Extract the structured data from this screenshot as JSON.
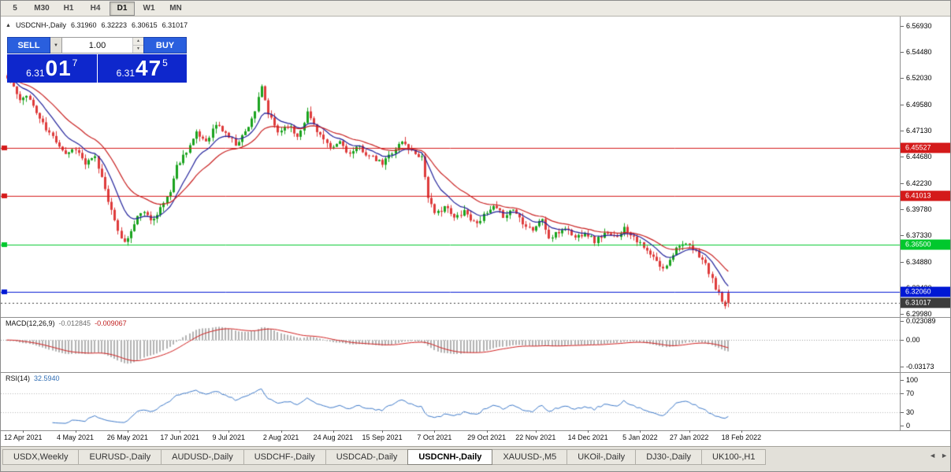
{
  "toolbar": {
    "timeframes": [
      {
        "label": "5",
        "active": false
      },
      {
        "label": "M30",
        "active": false
      },
      {
        "label": "H1",
        "active": false
      },
      {
        "label": "H4",
        "active": false
      },
      {
        "label": "D1",
        "active": true
      },
      {
        "label": "W1",
        "active": false
      },
      {
        "label": "MN",
        "active": false
      }
    ]
  },
  "chart_header": {
    "collapse_icon": "▲",
    "symbol": "USDCNH-,Daily",
    "open": "6.31960",
    "high": "6.32223",
    "low": "6.30615",
    "close": "6.31017"
  },
  "trade_panel": {
    "sell_label": "SELL",
    "buy_label": "BUY",
    "volume_value": "1.00",
    "dropdown_icon": "▼",
    "spin_up_icon": "▲",
    "spin_down_icon": "▼",
    "sell_price": {
      "small": "6.31",
      "big": "01",
      "sup": "7"
    },
    "buy_price": {
      "small": "6.31",
      "big": "47",
      "sup": "5"
    }
  },
  "chart_data": {
    "type": "candlestick",
    "symbol": "USDCNH-,Daily",
    "timeframe": "Daily",
    "last_ohlc": {
      "open": 6.3196,
      "high": 6.32223,
      "low": 6.30615,
      "close": 6.31017
    },
    "n_bars": 222,
    "noise_seed": 11,
    "close_jitter": 0.0026,
    "wick_amp": 0.0048,
    "price_waypoints": [
      [
        0,
        6.52
      ],
      [
        2,
        6.512
      ],
      [
        4,
        6.498
      ],
      [
        6,
        6.506
      ],
      [
        9,
        6.488
      ],
      [
        12,
        6.472
      ],
      [
        15,
        6.462
      ],
      [
        18,
        6.45
      ],
      [
        21,
        6.455
      ],
      [
        24,
        6.44
      ],
      [
        27,
        6.446
      ],
      [
        30,
        6.418
      ],
      [
        33,
        6.385
      ],
      [
        36,
        6.366
      ],
      [
        38,
        6.377
      ],
      [
        41,
        6.396
      ],
      [
        44,
        6.388
      ],
      [
        47,
        6.398
      ],
      [
        50,
        6.415
      ],
      [
        52,
        6.438
      ],
      [
        55,
        6.453
      ],
      [
        58,
        6.468
      ],
      [
        61,
        6.462
      ],
      [
        64,
        6.477
      ],
      [
        67,
        6.469
      ],
      [
        70,
        6.459
      ],
      [
        73,
        6.47
      ],
      [
        76,
        6.49
      ],
      [
        78,
        6.511
      ],
      [
        80,
        6.487
      ],
      [
        83,
        6.47
      ],
      [
        86,
        6.477
      ],
      [
        89,
        6.466
      ],
      [
        92,
        6.488
      ],
      [
        95,
        6.472
      ],
      [
        99,
        6.453
      ],
      [
        102,
        6.461
      ],
      [
        105,
        6.449
      ],
      [
        108,
        6.456
      ],
      [
        111,
        6.447
      ],
      [
        115,
        6.44
      ],
      [
        118,
        6.452
      ],
      [
        121,
        6.461
      ],
      [
        124,
        6.452
      ],
      [
        127,
        6.447
      ],
      [
        129,
        6.41
      ],
      [
        131,
        6.392
      ],
      [
        134,
        6.401
      ],
      [
        137,
        6.389
      ],
      [
        140,
        6.397
      ],
      [
        143,
        6.385
      ],
      [
        146,
        6.391
      ],
      [
        149,
        6.399
      ],
      [
        152,
        6.392
      ],
      [
        155,
        6.398
      ],
      [
        158,
        6.386
      ],
      [
        161,
        6.379
      ],
      [
        164,
        6.389
      ],
      [
        166,
        6.37
      ],
      [
        168,
        6.374
      ],
      [
        171,
        6.381
      ],
      [
        174,
        6.371
      ],
      [
        177,
        6.377
      ],
      [
        180,
        6.368
      ],
      [
        183,
        6.375
      ],
      [
        186,
        6.371
      ],
      [
        189,
        6.38
      ],
      [
        192,
        6.373
      ],
      [
        195,
        6.361
      ],
      [
        198,
        6.352
      ],
      [
        201,
        6.341
      ],
      [
        203,
        6.352
      ],
      [
        206,
        6.366
      ],
      [
        209,
        6.362
      ],
      [
        212,
        6.355
      ],
      [
        214,
        6.346
      ],
      [
        216,
        6.331
      ],
      [
        218,
        6.318
      ],
      [
        220,
        6.305
      ],
      [
        221,
        6.31
      ]
    ],
    "y_axis": {
      "min": 6.297,
      "max": 6.578,
      "tick_labels": [
        "6.56930",
        "6.54480",
        "6.52030",
        "6.49580",
        "6.47130",
        "6.44680",
        "6.42230",
        "6.39780",
        "6.37330",
        "6.34880",
        "6.32430",
        "6.29980"
      ],
      "tick_values": [
        6.5693,
        6.5448,
        6.5203,
        6.4958,
        6.4713,
        6.4468,
        6.4223,
        6.3978,
        6.3733,
        6.3488,
        6.3243,
        6.2998
      ]
    },
    "x_axis": {
      "tick_labels": [
        {
          "label": "12 Apr 2021",
          "bar": 5
        },
        {
          "label": "4 May 2021",
          "bar": 21
        },
        {
          "label": "26 May 2021",
          "bar": 37
        },
        {
          "label": "17 Jun 2021",
          "bar": 53
        },
        {
          "label": "9 Jul 2021",
          "bar": 68
        },
        {
          "label": "2 Aug 2021",
          "bar": 84
        },
        {
          "label": "24 Aug 2021",
          "bar": 100
        },
        {
          "label": "15 Sep 2021",
          "bar": 115
        },
        {
          "label": "7 Oct 2021",
          "bar": 131
        },
        {
          "label": "29 Oct 2021",
          "bar": 147
        },
        {
          "label": "22 Nov 2021",
          "bar": 162
        },
        {
          "label": "14 Dec 2021",
          "bar": 178
        },
        {
          "label": "5 Jan 2022",
          "bar": 194
        },
        {
          "label": "27 Jan 2022",
          "bar": 209
        },
        {
          "label": "18 Feb 2022",
          "bar": 225
        }
      ]
    },
    "horizontal_lines": [
      {
        "price": 6.45527,
        "label": "6.45527",
        "color": "#d41a1a"
      },
      {
        "price": 6.41013,
        "label": "6.41013",
        "color": "#d41a1a"
      },
      {
        "price": 6.365,
        "label": "6.36500",
        "color": "#00c82d"
      },
      {
        "price": 6.3206,
        "label": "6.32060",
        "color": "#0018d4"
      }
    ],
    "current_price": {
      "price": 6.31017,
      "label": "6.31017",
      "color": "#3c3c3c"
    },
    "colors": {
      "up": "#1aa31e",
      "down": "#de3b3b",
      "ma_fast": "#20209a",
      "ma_slow": "#c82020",
      "macd_hist": "#b2b2b2",
      "macd_signal": "#d02020",
      "rsi_line": "#3c78c8"
    },
    "ma_overlays": [
      {
        "type": "ema",
        "period": 10,
        "color_key": "ma_fast"
      },
      {
        "type": "ema",
        "period": 22,
        "color_key": "ma_slow"
      }
    ],
    "indicators": {
      "macd": {
        "label": "MACD(12,26,9)",
        "value_main": "-0.012845",
        "value_signal": "-0.009067",
        "scale_ticks": [
          {
            "label": "0.023089",
            "value": 0.023089
          },
          {
            "label": "0.00",
            "value": 0
          },
          {
            "label": "-0.03173",
            "value": -0.03173
          }
        ],
        "range": {
          "max": 0.0245,
          "min": -0.0335
        }
      },
      "rsi": {
        "label": "RSI(14)",
        "value": "32.5940",
        "levels": [
          70,
          30
        ],
        "scale_ticks": [
          {
            "label": "100",
            "value": 100
          },
          {
            "label": "70",
            "value": 70
          },
          {
            "label": "30",
            "value": 30
          },
          {
            "label": "0",
            "value": 0
          }
        ],
        "range": {
          "max": 100,
          "min": 0
        }
      }
    }
  },
  "tabs": {
    "items": [
      {
        "label": "USDX,Weekly",
        "active": false
      },
      {
        "label": "EURUSD-,Daily",
        "active": false
      },
      {
        "label": "AUDUSD-,Daily",
        "active": false
      },
      {
        "label": "USDCHF-,Daily",
        "active": false
      },
      {
        "label": "USDCAD-,Daily",
        "active": false
      },
      {
        "label": "USDCNH-,Daily",
        "active": true
      },
      {
        "label": "XAUUSD-,M5",
        "active": false
      },
      {
        "label": "UKOil-,Daily",
        "active": false
      },
      {
        "label": "DJ30-,Daily",
        "active": false
      },
      {
        "label": "UK100-,H1",
        "active": false
      }
    ],
    "scroll_left_icon": "◄",
    "scroll_right_icon": "►"
  }
}
